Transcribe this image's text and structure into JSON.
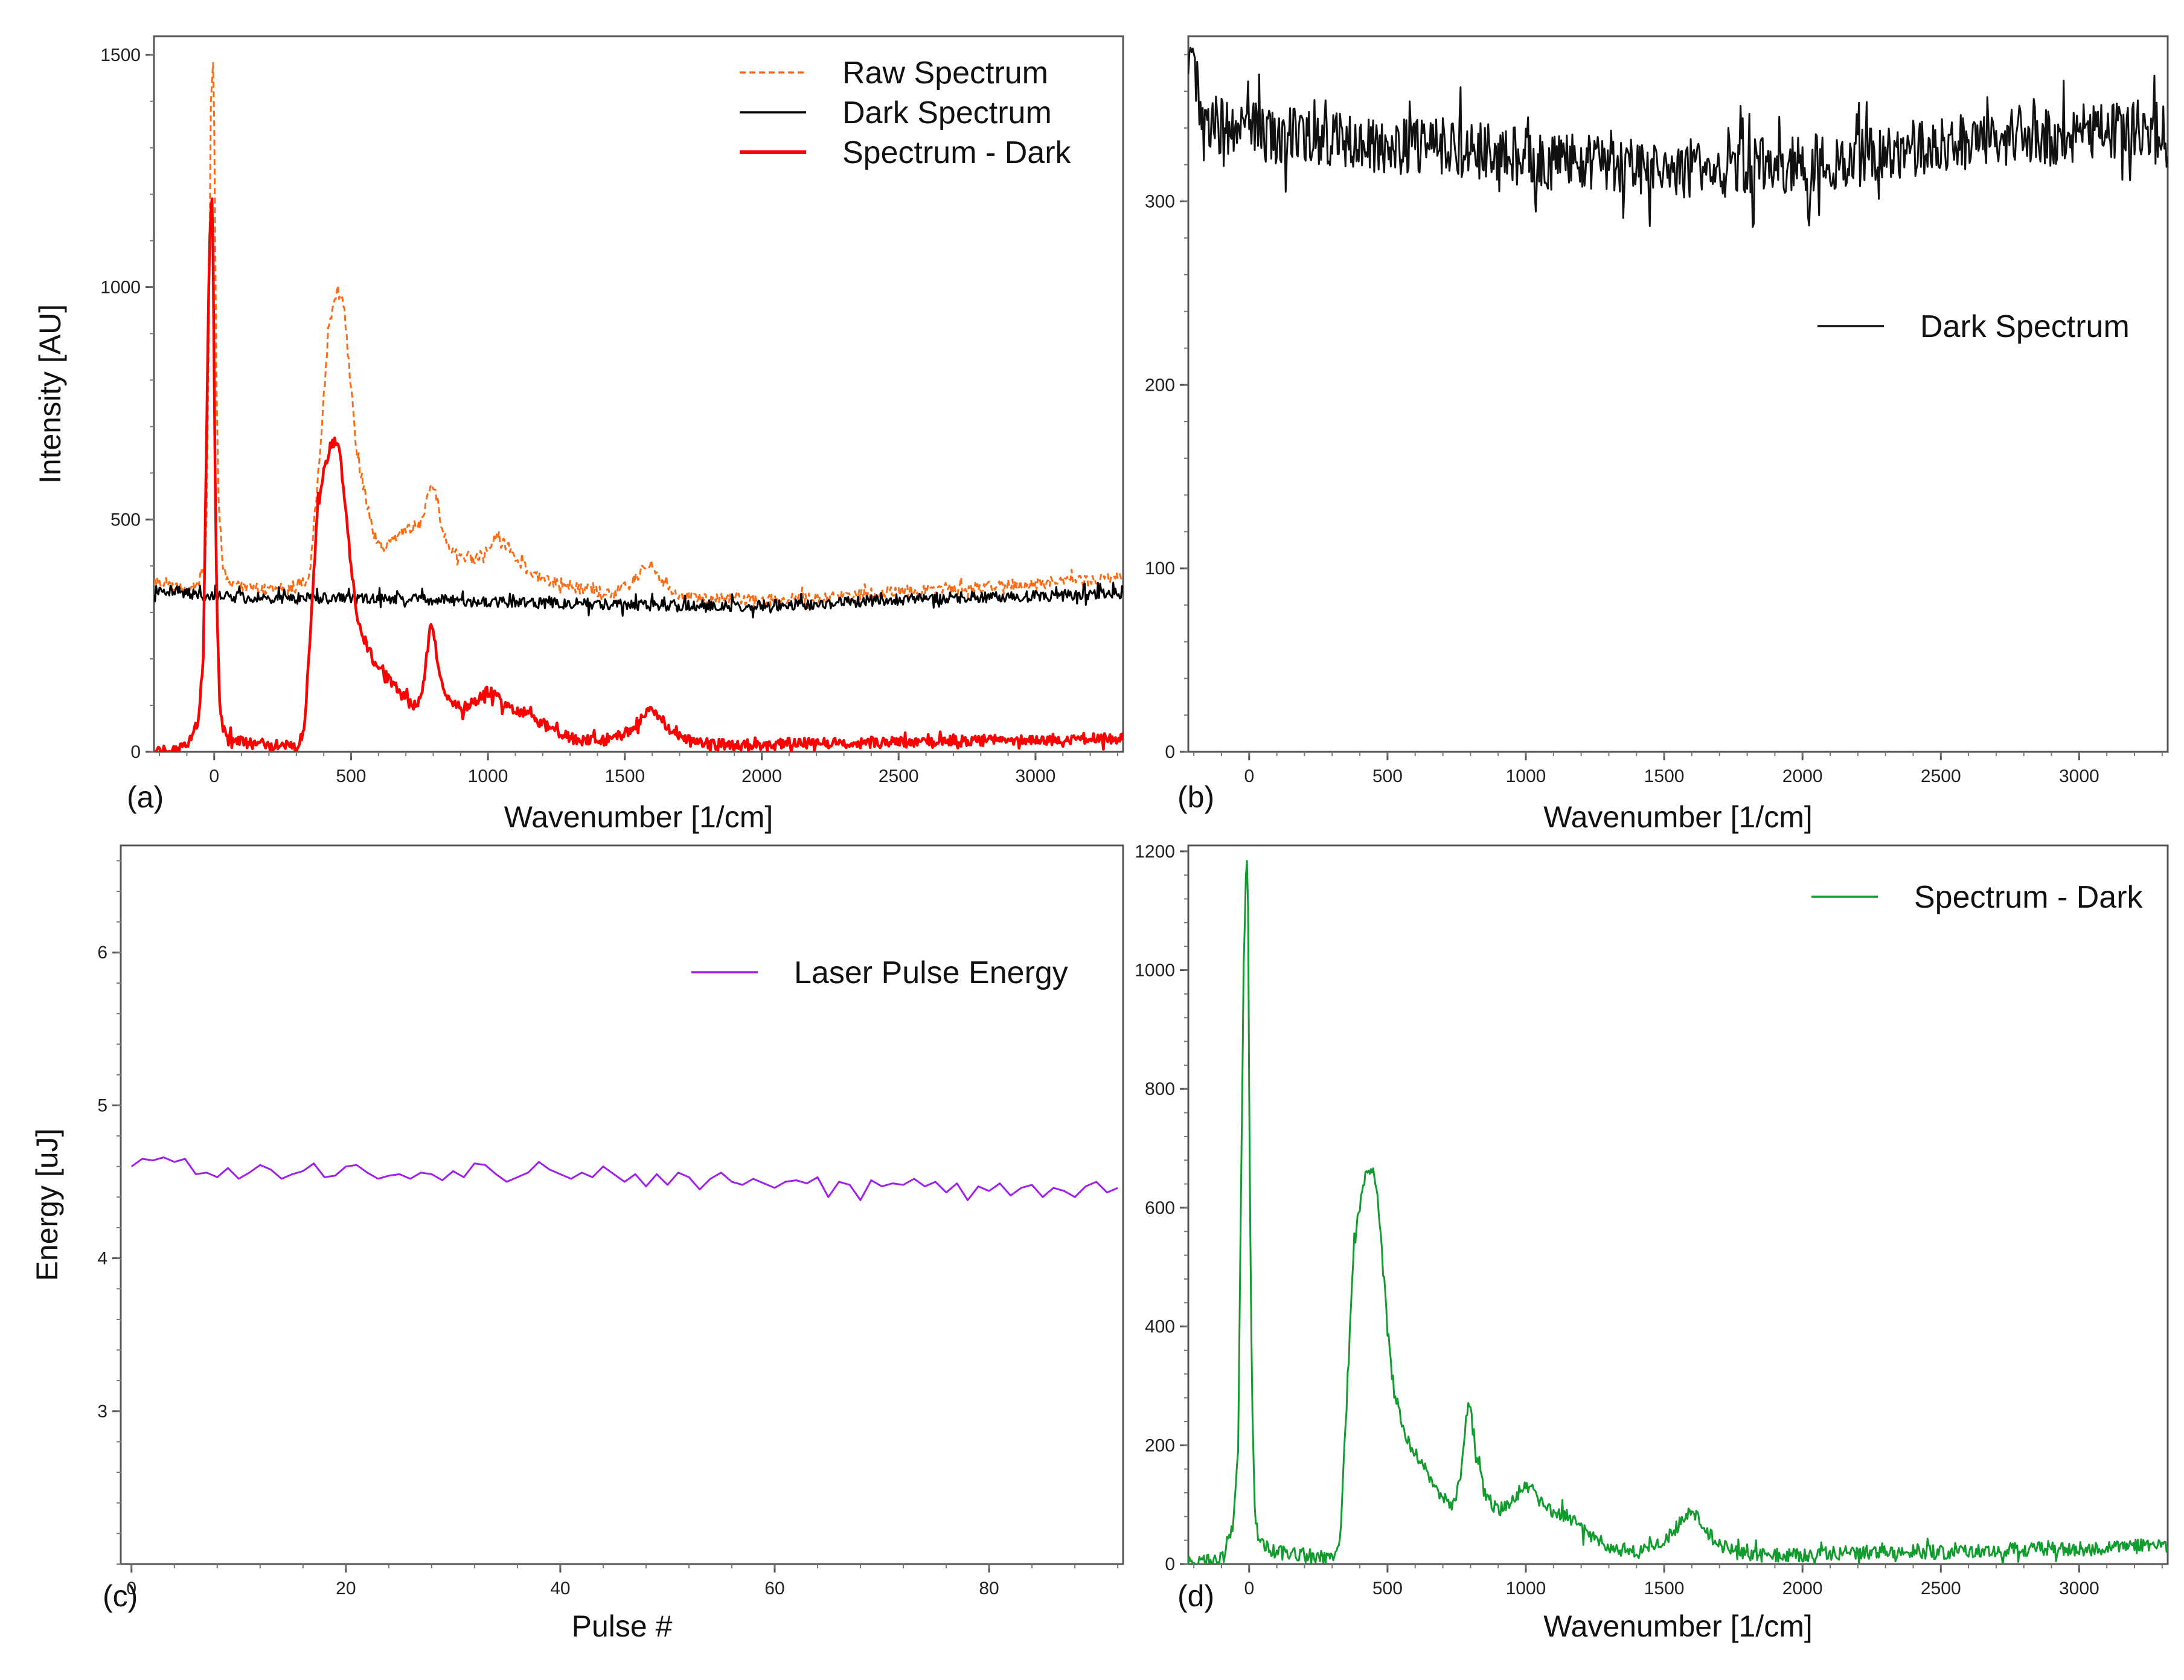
{
  "figure": {
    "panels_order": [
      "a",
      "b",
      "c",
      "d"
    ]
  },
  "chart_data": [
    {
      "id": "a",
      "type": "line",
      "panel_label": "(a)",
      "xlabel": "Wavenumber [1/cm]",
      "ylabel": "Intensity [AU]",
      "xlim": [
        -220,
        3320
      ],
      "ylim": [
        0,
        1540
      ],
      "xticks": [
        0,
        500,
        1000,
        1500,
        2000,
        2500,
        3000
      ],
      "yticks": [
        0,
        500,
        1000,
        1500
      ],
      "legend_position": "top-right",
      "series": [
        {
          "name": "Raw Spectrum",
          "color": "#ff6a13",
          "style": "dashed",
          "x": [
            -200,
            -120,
            -60,
            -30,
            -20,
            -12,
            -5,
            0,
            8,
            15,
            30,
            60,
            100,
            200,
            300,
            350,
            380,
            420,
            450,
            470,
            490,
            520,
            550,
            580,
            620,
            660,
            700,
            740,
            770,
            790,
            810,
            830,
            860,
            900,
            950,
            1000,
            1030,
            1060,
            1090,
            1130,
            1170,
            1220,
            1280,
            1350,
            1450,
            1520,
            1560,
            1590,
            1620,
            1660,
            1720,
            1800,
            1900,
            2000,
            2100,
            2200,
            2300,
            2400,
            2500,
            2600,
            2700,
            2800,
            2900,
            3000,
            3100,
            3200,
            3300
          ],
          "y": [
            370,
            350,
            360,
            420,
            900,
            1400,
            1520,
            1350,
            800,
            560,
            400,
            360,
            355,
            350,
            350,
            380,
            600,
            920,
            1000,
            980,
            850,
            640,
            560,
            470,
            440,
            460,
            480,
            480,
            520,
            580,
            560,
            480,
            440,
            420,
            410,
            440,
            470,
            450,
            430,
            400,
            380,
            370,
            360,
            350,
            340,
            360,
            390,
            410,
            380,
            350,
            335,
            330,
            330,
            325,
            330,
            330,
            335,
            340,
            345,
            350,
            350,
            355,
            360,
            360,
            365,
            370,
            375
          ]
        },
        {
          "name": "Dark Spectrum",
          "color": "#000000",
          "style": "solid",
          "x": [
            -200,
            0,
            200,
            400,
            600,
            800,
            1000,
            1200,
            1400,
            1600,
            1800,
            2000,
            2200,
            2400,
            2600,
            2800,
            3000,
            3200,
            3300
          ],
          "y": [
            350,
            335,
            330,
            330,
            330,
            328,
            322,
            320,
            318,
            315,
            315,
            315,
            318,
            325,
            330,
            333,
            335,
            338,
            340
          ]
        },
        {
          "name": "Spectrum - Dark",
          "color": "#ff0000",
          "style": "solid",
          "x": [
            -200,
            -100,
            -60,
            -40,
            -30,
            -20,
            -10,
            -5,
            0,
            5,
            10,
            20,
            30,
            60,
            100,
            200,
            300,
            330,
            350,
            380,
            420,
            440,
            460,
            480,
            500,
            520,
            550,
            580,
            620,
            660,
            700,
            740,
            760,
            780,
            790,
            800,
            820,
            850,
            900,
            950,
            1000,
            1030,
            1060,
            1100,
            1150,
            1200,
            1300,
            1400,
            1500,
            1560,
            1600,
            1630,
            1680,
            1750,
            1850,
            2000,
            2200,
            2400,
            2600,
            2800,
            3000,
            3200,
            3300
          ],
          "y": [
            0,
            10,
            60,
            200,
            600,
            1000,
            1210,
            1150,
            800,
            500,
            300,
            100,
            50,
            30,
            20,
            15,
            10,
            50,
            250,
            550,
            650,
            670,
            640,
            520,
            400,
            300,
            240,
            200,
            170,
            140,
            110,
            100,
            130,
            220,
            270,
            260,
            180,
            120,
            90,
            110,
            130,
            120,
            100,
            90,
            80,
            60,
            30,
            20,
            40,
            70,
            90,
            70,
            40,
            20,
            15,
            15,
            20,
            20,
            20,
            25,
            25,
            30,
            30
          ]
        }
      ]
    },
    {
      "id": "b",
      "type": "line",
      "panel_label": "(b)",
      "xlabel": "Wavenumber [1/cm]",
      "ylabel": "",
      "xlim": [
        -220,
        3320
      ],
      "ylim": [
        0,
        390
      ],
      "xticks": [
        0,
        500,
        1000,
        1500,
        2000,
        2500,
        3000
      ],
      "yticks": [
        0,
        100,
        200,
        300
      ],
      "legend_position": "middle-right",
      "series": [
        {
          "name": "Dark Spectrum",
          "color": "#111111",
          "style": "solid",
          "x": [
            -220,
            -200,
            -180,
            -150,
            -100,
            0,
            100,
            200,
            300,
            400,
            500,
            600,
            700,
            800,
            900,
            1000,
            1100,
            1200,
            1300,
            1400,
            1500,
            1600,
            1700,
            1800,
            1900,
            2000,
            2100,
            2200,
            2300,
            2400,
            2500,
            2600,
            2700,
            2800,
            2900,
            3000,
            3100,
            3200,
            3300
          ],
          "y": [
            385,
            370,
            355,
            345,
            340,
            338,
            336,
            334,
            333,
            332,
            331,
            330,
            330,
            328,
            326,
            324,
            322,
            321,
            320,
            319,
            318,
            318,
            318,
            319,
            320,
            320,
            322,
            324,
            326,
            328,
            330,
            332,
            334,
            335,
            336,
            337,
            338,
            339,
            340
          ]
        }
      ]
    },
    {
      "id": "c",
      "type": "line",
      "panel_label": "(c)",
      "xlabel": "Pulse #",
      "ylabel": "Energy [uJ]",
      "xlim": [
        -1,
        92.5
      ],
      "ylim": [
        2.0,
        6.7
      ],
      "xticks": [
        0,
        20,
        40,
        60,
        80
      ],
      "yticks": [
        3,
        4,
        5,
        6
      ],
      "legend_position": "top-right",
      "series": [
        {
          "name": "Laser Pulse Energy",
          "color": "#a020f0",
          "style": "solid",
          "x": [
            0,
            1,
            2,
            3,
            4,
            5,
            6,
            7,
            8,
            9,
            10,
            11,
            12,
            13,
            14,
            15,
            16,
            17,
            18,
            19,
            20,
            21,
            22,
            23,
            24,
            25,
            26,
            27,
            28,
            29,
            30,
            31,
            32,
            33,
            34,
            35,
            36,
            37,
            38,
            39,
            40,
            41,
            42,
            43,
            44,
            45,
            46,
            47,
            48,
            49,
            50,
            51,
            52,
            53,
            54,
            55,
            56,
            57,
            58,
            59,
            60,
            61,
            62,
            63,
            64,
            65,
            66,
            67,
            68,
            69,
            70,
            71,
            72,
            73,
            74,
            75,
            76,
            77,
            78,
            79,
            80,
            81,
            82,
            83,
            84,
            85,
            86,
            87,
            88,
            89,
            90,
            91,
            92
          ],
          "y": [
            4.6,
            4.65,
            4.64,
            4.66,
            4.63,
            4.65,
            4.55,
            4.56,
            4.53,
            4.59,
            4.52,
            4.56,
            4.61,
            4.58,
            4.52,
            4.55,
            4.57,
            4.62,
            4.53,
            4.54,
            4.6,
            4.61,
            4.56,
            4.52,
            4.54,
            4.55,
            4.52,
            4.56,
            4.55,
            4.51,
            4.57,
            4.53,
            4.62,
            4.61,
            4.55,
            4.5,
            4.53,
            4.56,
            4.63,
            4.58,
            4.55,
            4.52,
            4.56,
            4.53,
            4.6,
            4.55,
            4.5,
            4.55,
            4.47,
            4.55,
            4.48,
            4.56,
            4.53,
            4.45,
            4.52,
            4.56,
            4.5,
            4.48,
            4.52,
            4.49,
            4.46,
            4.5,
            4.51,
            4.49,
            4.53,
            4.4,
            4.5,
            4.48,
            4.38,
            4.51,
            4.47,
            4.49,
            4.48,
            4.52,
            4.47,
            4.5,
            4.43,
            4.49,
            4.38,
            4.47,
            4.44,
            4.49,
            4.41,
            4.46,
            4.48,
            4.4,
            4.46,
            4.44,
            4.4,
            4.47,
            4.5,
            4.43,
            4.46
          ]
        }
      ]
    },
    {
      "id": "d",
      "type": "line",
      "panel_label": "(d)",
      "xlabel": "Wavenumber [1/cm]",
      "ylabel": "",
      "xlim": [
        -220,
        3320
      ],
      "ylim": [
        0,
        1210
      ],
      "xticks": [
        0,
        500,
        1000,
        1500,
        2000,
        2500,
        3000
      ],
      "yticks": [
        0,
        200,
        400,
        600,
        800,
        1000,
        1200
      ],
      "legend_position": "top-right",
      "series": [
        {
          "name": "Spectrum - Dark",
          "color": "#119c2e",
          "style": "solid",
          "x": [
            -200,
            -100,
            -60,
            -40,
            -30,
            -20,
            -10,
            -5,
            0,
            5,
            10,
            20,
            30,
            60,
            100,
            200,
            300,
            330,
            350,
            380,
            420,
            440,
            460,
            480,
            500,
            520,
            550,
            580,
            620,
            660,
            700,
            740,
            760,
            780,
            790,
            800,
            820,
            850,
            900,
            950,
            1000,
            1030,
            1060,
            1100,
            1150,
            1200,
            1300,
            1400,
            1500,
            1560,
            1600,
            1630,
            1680,
            1750,
            1850,
            2000,
            2200,
            2400,
            2600,
            2800,
            3000,
            3200,
            3300
          ],
          "y": [
            0,
            10,
            60,
            200,
            600,
            1000,
            1210,
            1150,
            800,
            500,
            300,
            100,
            50,
            30,
            20,
            15,
            10,
            50,
            250,
            550,
            650,
            670,
            640,
            520,
            400,
            300,
            240,
            200,
            170,
            140,
            110,
            100,
            130,
            220,
            270,
            260,
            180,
            120,
            90,
            110,
            130,
            120,
            100,
            90,
            80,
            60,
            30,
            20,
            40,
            70,
            90,
            70,
            40,
            20,
            15,
            15,
            20,
            20,
            20,
            25,
            25,
            30,
            30
          ]
        }
      ]
    }
  ]
}
